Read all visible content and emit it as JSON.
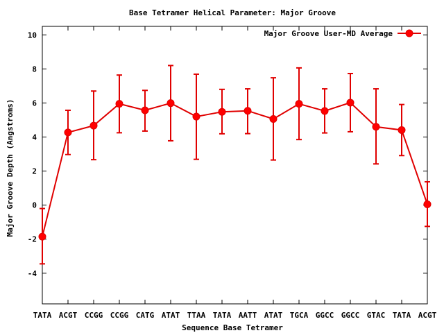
{
  "chart_data": {
    "type": "line",
    "title": "Base Tetramer Helical Parameter: Major Groove",
    "xlabel": "Sequence Base Tetramer",
    "ylabel": "Major Groove Depth (Angstroms)",
    "ylim": [
      -5.8,
      10.5
    ],
    "yticks": [
      -4,
      -2,
      0,
      2,
      4,
      6,
      8,
      10
    ],
    "grid": false,
    "legend_position": "top-right",
    "categories": [
      "TATA",
      "ACGT",
      "CCGG",
      "CCGG",
      "CATG",
      "ATAT",
      "TTAA",
      "TATA",
      "AATT",
      "ATAT",
      "TGCA",
      "GGCC",
      "GGCC",
      "GTAC",
      "TATA",
      "ACGT"
    ],
    "series": [
      {
        "name": "Major Groove User-MD Average",
        "color": "#ff0000",
        "values": [
          -1.85,
          4.27,
          4.67,
          5.95,
          5.57,
          5.99,
          5.2,
          5.48,
          5.54,
          5.06,
          5.95,
          5.53,
          6.02,
          4.6,
          4.41,
          0.05
        ],
        "err_low": [
          -3.45,
          2.97,
          2.67,
          4.25,
          4.35,
          3.78,
          2.69,
          4.19,
          4.2,
          2.65,
          3.85,
          4.24,
          4.31,
          2.42,
          2.91,
          -1.25
        ],
        "err_high": [
          -0.2,
          5.57,
          6.7,
          7.64,
          6.74,
          8.2,
          7.69,
          6.8,
          6.83,
          7.48,
          8.06,
          6.83,
          7.73,
          6.83,
          5.91,
          1.37
        ]
      }
    ]
  }
}
